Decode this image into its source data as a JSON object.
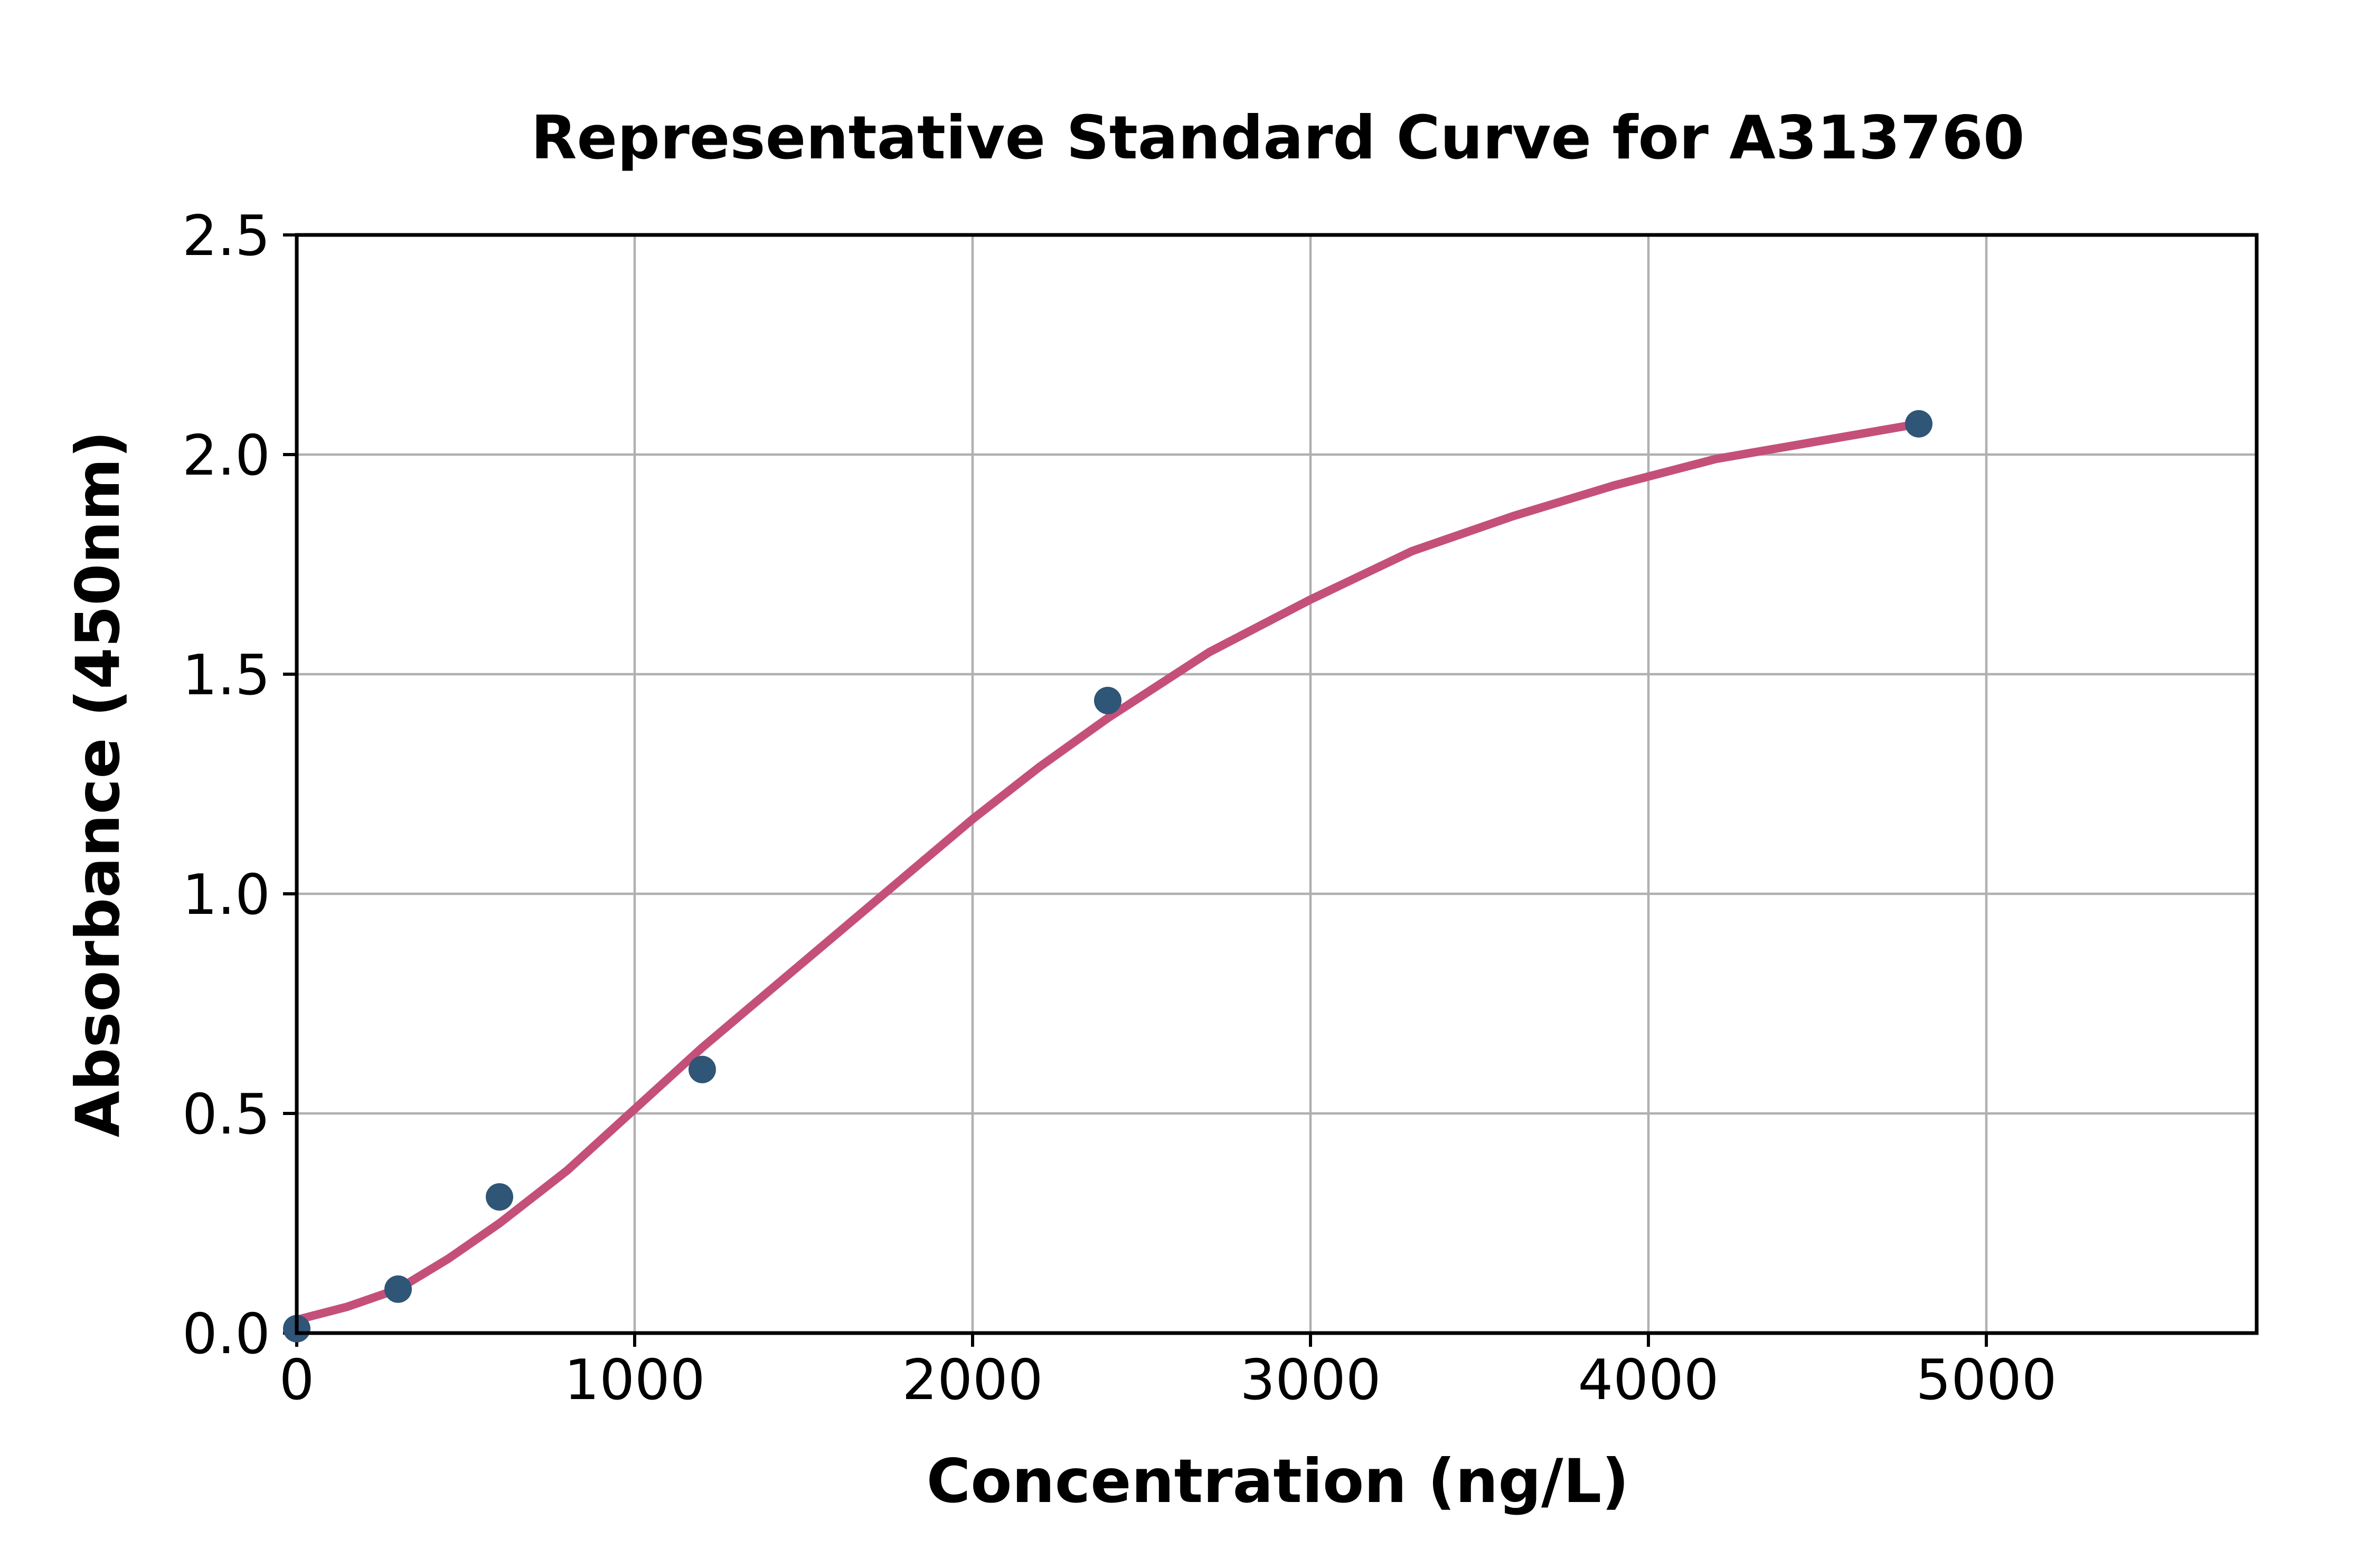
{
  "chart_data": {
    "type": "scatter",
    "title": "Representative Standard Curve for A313760",
    "xlabel": "Concentration (ng/L)",
    "ylabel": "Absorbance (450nm)",
    "xlim": [
      0,
      5800
    ],
    "ylim": [
      0,
      2.5
    ],
    "grid": true,
    "legend_position": "none",
    "x_ticks": {
      "values": [
        0,
        1000,
        2000,
        3000,
        4000,
        5000
      ],
      "labels": [
        "0",
        "1000",
        "2000",
        "3000",
        "4000",
        "5000"
      ]
    },
    "y_ticks": {
      "values": [
        0,
        0.5,
        1.0,
        1.5,
        2.0,
        2.5
      ],
      "labels": [
        "0.0",
        "0.5",
        "1.0",
        "1.5",
        "2.0",
        "2.5"
      ]
    },
    "colors": {
      "points": "#2f5577",
      "fit_curve": "#c4507a",
      "grid": "#b0b0b0",
      "axes": "#000000"
    },
    "series": [
      {
        "name": "standard-points",
        "type": "scatter",
        "x": [
          0,
          300,
          600,
          1200,
          2400,
          4800
        ],
        "y": [
          0.01,
          0.1,
          0.31,
          0.6,
          1.44,
          2.07
        ]
      },
      {
        "name": "4pl-fit-curve",
        "type": "line",
        "x": [
          0,
          150,
          300,
          450,
          600,
          800,
          1000,
          1200,
          1400,
          1600,
          1800,
          2000,
          2200,
          2400,
          2700,
          3000,
          3300,
          3600,
          3900,
          4200,
          4500,
          4800
        ],
        "y": [
          0.03,
          0.06,
          0.1,
          0.17,
          0.25,
          0.37,
          0.51,
          0.65,
          0.78,
          0.91,
          1.04,
          1.17,
          1.29,
          1.4,
          1.55,
          1.67,
          1.78,
          1.86,
          1.93,
          1.99,
          2.03,
          2.07
        ]
      }
    ]
  }
}
